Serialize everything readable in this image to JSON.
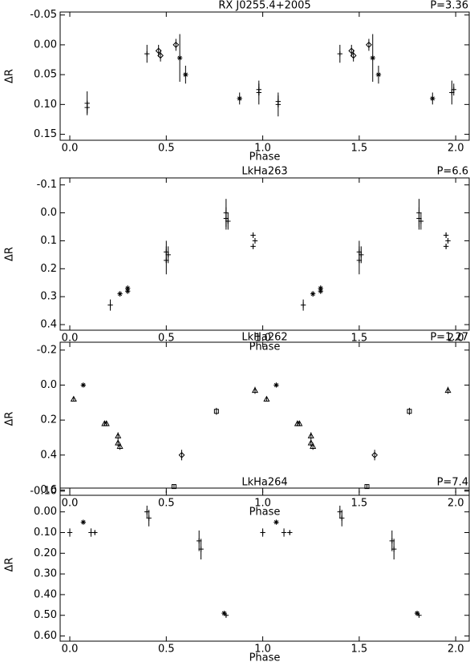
{
  "chart_data": [
    {
      "type": "scatter",
      "title": "RX J0255.4+2005",
      "annotation": "P=3.36",
      "x_label": "Phase",
      "y_label": "ΔR",
      "xlim": [
        -0.05,
        2.07
      ],
      "xticks": [
        {
          "value": 0,
          "label": "0.0"
        },
        0.5,
        {
          "value": 1,
          "label": "1.0"
        },
        1.5,
        {
          "value": 2,
          "label": "2.0"
        }
      ],
      "ylim": [
        0.16,
        -0.055
      ],
      "yticks": [
        -0.05,
        {
          "value": 0,
          "label": "0.00"
        },
        0.05,
        {
          "value": 0.1,
          "label": "0.10"
        },
        0.15
      ],
      "series": [
        {
          "marker": "plus",
          "color": "#000000",
          "x": [
            0.09,
            0.09,
            0.4,
            0.98,
            0.98,
            1.08,
            1.08,
            1.4,
            1.98,
            1.99
          ],
          "values": [
            0.098,
            0.105,
            0.015,
            0.08,
            0.075,
            0.1,
            0.095,
            0.015,
            0.08,
            0.075
          ],
          "errors": [
            0.02,
            0.01,
            0.015,
            0.02,
            0.01,
            0.02,
            0.01,
            0.015,
            0.02,
            0.01
          ]
        },
        {
          "marker": "diamond",
          "color": "#000000",
          "x": [
            0.46,
            0.47,
            0.55,
            1.46,
            1.47,
            1.55
          ],
          "values": [
            0.01,
            0.018,
            0.0,
            0.01,
            0.018,
            0.0
          ],
          "errors": [
            0.01,
            0.01,
            0.01,
            0.01,
            0.01,
            0.01
          ]
        },
        {
          "marker": "asterisk",
          "color": "#000000",
          "x": [
            0.57,
            0.6,
            0.88,
            1.57,
            1.6,
            1.88
          ],
          "values": [
            0.022,
            0.05,
            0.09,
            0.022,
            0.05,
            0.09
          ],
          "errors": [
            0.04,
            0.015,
            0.01,
            0.04,
            0.015,
            0.01
          ]
        }
      ]
    },
    {
      "type": "scatter",
      "title": "LkHa263",
      "annotation": "P=6.6",
      "x_label": "Phase",
      "y_label": "ΔR",
      "xlim": [
        -0.05,
        2.07
      ],
      "xticks": [
        {
          "value": 0,
          "label": "0.0"
        },
        0.5,
        {
          "value": 1,
          "label": "1.0"
        },
        1.5,
        {
          "value": 2,
          "label": "2.0"
        }
      ],
      "ylim": [
        0.42,
        -0.125
      ],
      "yticks": [
        -0.1,
        {
          "value": 0,
          "label": "0.0"
        },
        0.1,
        0.2,
        0.3,
        0.4
      ],
      "series": [
        {
          "marker": "plus",
          "color": "#000000",
          "x": [
            0.21,
            0.5,
            0.5,
            0.51,
            0.81,
            0.81,
            0.82,
            0.95,
            0.95,
            0.96,
            1.21,
            1.5,
            1.5,
            1.51,
            1.81,
            1.81,
            1.82,
            1.95,
            1.95,
            1.96
          ],
          "values": [
            0.33,
            0.17,
            0.14,
            0.15,
            0.02,
            0.0,
            0.03,
            0.08,
            0.12,
            0.1,
            0.33,
            0.17,
            0.14,
            0.15,
            0.02,
            0.0,
            0.03,
            0.08,
            0.12,
            0.1
          ],
          "errors": [
            0.02,
            0.05,
            0.04,
            0.03,
            0.04,
            0.05,
            0.03,
            0.01,
            0.01,
            0.01,
            0.02,
            0.05,
            0.04,
            0.03,
            0.04,
            0.05,
            0.03,
            0.01,
            0.01,
            0.01
          ]
        },
        {
          "marker": "asterisk",
          "color": "#000000",
          "x": [
            0.26,
            0.3,
            0.3,
            1.26,
            1.3,
            1.3
          ],
          "values": [
            0.29,
            0.27,
            0.28,
            0.29,
            0.27,
            0.28
          ],
          "errors": [
            0.01,
            0.01,
            0.01,
            0.01,
            0.01,
            0.01
          ]
        }
      ]
    },
    {
      "type": "scatter",
      "title": "LkHa262",
      "annotation": "P=1.27",
      "x_label": "Phase",
      "y_label": "ΔR",
      "xlim": [
        -0.05,
        2.07
      ],
      "xticks": [
        {
          "value": 0,
          "label": "0.0"
        },
        0.5,
        {
          "value": 1,
          "label": "1.0"
        },
        1.5,
        {
          "value": 2,
          "label": "2.0"
        }
      ],
      "ylim": [
        0.63,
        -0.245
      ],
      "yticks": [
        -0.2,
        {
          "value": 0,
          "label": "0.0"
        },
        0.2,
        0.4,
        0.6
      ],
      "series": [
        {
          "marker": "triangle",
          "color": "#000000",
          "x": [
            0.02,
            0.18,
            0.19,
            0.25,
            0.25,
            0.26,
            0.96,
            1.02,
            1.18,
            1.19,
            1.25,
            1.25,
            1.26,
            1.96
          ],
          "values": [
            0.08,
            0.22,
            0.22,
            0.29,
            0.33,
            0.35,
            0.03,
            0.08,
            0.22,
            0.22,
            0.29,
            0.33,
            0.35,
            0.03
          ],
          "errors": [
            0.01,
            0.01,
            0.01,
            0.02,
            0.02,
            0.02,
            0.02,
            0.01,
            0.01,
            0.01,
            0.02,
            0.02,
            0.02,
            0.02
          ]
        },
        {
          "marker": "asterisk",
          "color": "#000000",
          "x": [
            0.07,
            1.07
          ],
          "values": [
            0.0,
            0.0
          ],
          "errors": [
            0.01,
            0.01
          ]
        },
        {
          "marker": "square",
          "color": "#000000",
          "x": [
            0.54,
            0.76,
            1.54,
            1.76
          ],
          "values": [
            0.58,
            0.15,
            0.58,
            0.15
          ],
          "errors": [
            0.01,
            0.02,
            0.01,
            0.02
          ]
        },
        {
          "marker": "diamond",
          "color": "#000000",
          "x": [
            0.58,
            1.58
          ],
          "values": [
            0.4,
            0.4
          ],
          "errors": [
            0.03,
            0.03
          ]
        }
      ]
    },
    {
      "type": "scatter",
      "title": "LkHa264",
      "annotation": "P=7.4",
      "x_label": "Phase",
      "y_label": "ΔR",
      "xlim": [
        -0.05,
        2.07
      ],
      "xticks": [
        {
          "value": 0,
          "label": "0.0"
        },
        0.5,
        {
          "value": 1,
          "label": "1.0"
        },
        1.5,
        {
          "value": 2,
          "label": "2.0"
        }
      ],
      "ylim": [
        0.625,
        -0.115
      ],
      "yticks": [
        {
          "value": -0.1,
          "label": "-0.10"
        },
        {
          "value": 0,
          "label": "0.00"
        },
        {
          "value": 0.1,
          "label": "0.10"
        },
        {
          "value": 0.2,
          "label": "0.20"
        },
        {
          "value": 0.3,
          "label": "0.30"
        },
        {
          "value": 0.4,
          "label": "0.40"
        },
        {
          "value": 0.5,
          "label": "0.50"
        },
        {
          "value": 0.6,
          "label": "0.60"
        }
      ],
      "series": [
        {
          "marker": "plus",
          "color": "#000000",
          "x": [
            0.0,
            0.11,
            0.13,
            0.4,
            0.41,
            0.67,
            0.68,
            0.81,
            1.0,
            1.11,
            1.14,
            1.4,
            1.41,
            1.67,
            1.68,
            1.81
          ],
          "values": [
            0.1,
            0.1,
            0.1,
            0.0,
            0.03,
            0.14,
            0.18,
            0.5,
            0.1,
            0.1,
            0.1,
            0.0,
            0.03,
            0.14,
            0.18,
            0.5
          ],
          "errors": [
            0.02,
            0.02,
            0.01,
            0.03,
            0.04,
            0.05,
            0.05,
            0.01,
            0.02,
            0.02,
            0.01,
            0.03,
            0.04,
            0.05,
            0.05,
            0.01
          ]
        },
        {
          "marker": "asterisk",
          "color": "#000000",
          "x": [
            0.07,
            0.8,
            1.07,
            1.8
          ],
          "values": [
            0.05,
            0.49,
            0.05,
            0.49
          ],
          "errors": [
            0.01,
            0.01,
            0.01,
            0.01
          ]
        }
      ]
    }
  ]
}
